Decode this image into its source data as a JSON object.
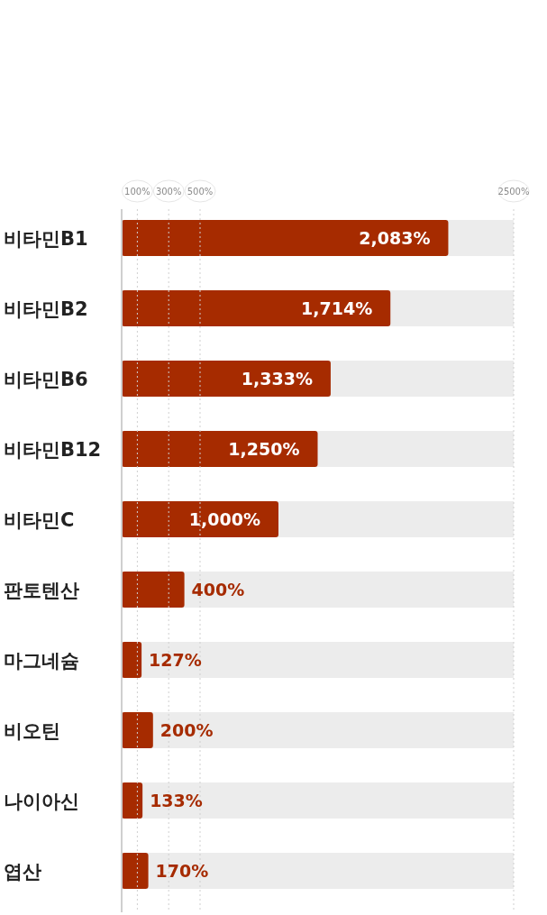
{
  "chart_data": {
    "type": "bar",
    "orientation": "horizontal",
    "categories": [
      "비타민B1",
      "비타민B2",
      "비타민B6",
      "비타민B12",
      "비타민C",
      "판토텐산",
      "마그네슘",
      "비오틴",
      "나이아신",
      "엽산"
    ],
    "values": [
      2083,
      1714,
      1333,
      1250,
      1000,
      400,
      127,
      200,
      133,
      170
    ],
    "value_labels": [
      "2,083%",
      "1,714%",
      "1,333%",
      "1,250%",
      "1,000%",
      "400%",
      "127%",
      "200%",
      "133%",
      "170%"
    ],
    "color": "#a62b00",
    "xlim": [
      0,
      2500
    ],
    "xticks": [
      {
        "value": 100,
        "label": "100%"
      },
      {
        "value": 300,
        "label": "300%"
      },
      {
        "value": 500,
        "label": "500%"
      },
      {
        "value": 2500,
        "label": "2500%"
      }
    ],
    "grid": "x"
  }
}
